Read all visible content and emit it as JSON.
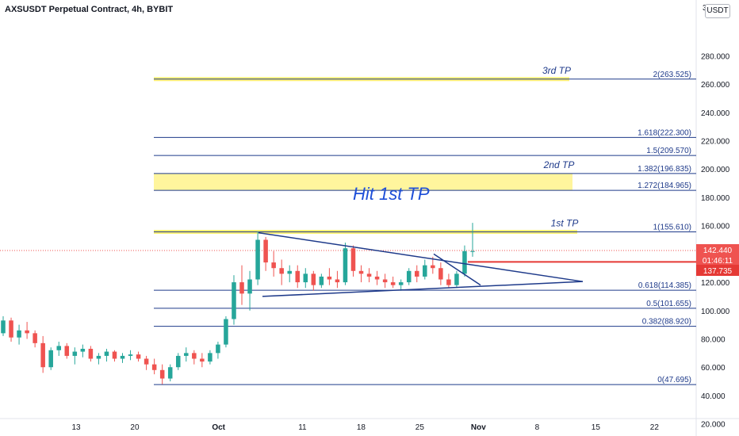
{
  "header": {
    "title": "AXSUSDT Perpetual Contract, 4h, BYBIT",
    "currency_badge": "USDT",
    "top_tick": "3"
  },
  "chart_data": {
    "type": "candlestick",
    "ylim": [
      10,
      300
    ],
    "y_ticks": [
      {
        "value": 280,
        "label": "280.000"
      },
      {
        "value": 260,
        "label": "260.000"
      },
      {
        "value": 240,
        "label": "240.000"
      },
      {
        "value": 220,
        "label": "220.000"
      },
      {
        "value": 200,
        "label": "200.000"
      },
      {
        "value": 180,
        "label": "180.000"
      },
      {
        "value": 160,
        "label": "160.000"
      },
      {
        "value": 120,
        "label": "120.000"
      },
      {
        "value": 100,
        "label": "100.000"
      },
      {
        "value": 80,
        "label": "80.000"
      },
      {
        "value": 60,
        "label": "60.000"
      },
      {
        "value": 40,
        "label": "40.000"
      },
      {
        "value": 20,
        "label": "20.000"
      }
    ],
    "x_ticks": [
      {
        "day": 13,
        "label": "13"
      },
      {
        "day": 20,
        "label": "20"
      },
      {
        "day": 30,
        "label": "Oct"
      },
      {
        "day": 40,
        "label": "11"
      },
      {
        "day": 47,
        "label": "18"
      },
      {
        "day": 54,
        "label": "25"
      },
      {
        "day": 61,
        "label": "Nov"
      },
      {
        "day": 68,
        "label": "8"
      },
      {
        "day": 75,
        "label": "15"
      },
      {
        "day": 82,
        "label": "22"
      }
    ],
    "fib_levels": [
      {
        "label": "2(263.525)",
        "value": 263.525
      },
      {
        "label": "1.618(222.300)",
        "value": 222.3
      },
      {
        "label": "1.5(209.570)",
        "value": 209.57
      },
      {
        "label": "1.382(196.835)",
        "value": 196.835
      },
      {
        "label": "1.272(184.965)",
        "value": 184.965
      },
      {
        "label": "1(155.610)",
        "value": 155.61
      },
      {
        "label": "0.618(114.385)",
        "value": 114.385
      },
      {
        "label": "0.5(101.655)",
        "value": 101.655
      },
      {
        "label": "0.382(88.920)",
        "value": 88.92
      },
      {
        "label": "0(47.695)",
        "value": 47.695
      }
    ],
    "tp_labels": [
      {
        "label": "3rd TP",
        "value": 263.525
      },
      {
        "label": "2nd TP",
        "value": 196.835
      },
      {
        "label": "1st TP",
        "value": 155.61
      }
    ],
    "annotation": "Hit 1st TP",
    "price_tags": {
      "current_price": {
        "value": 142.44,
        "label": "142.440"
      },
      "countdown": "01:46:11",
      "level_price": {
        "value": 137.735,
        "label": "137.735"
      }
    },
    "ohlc": [
      [
        84,
        96,
        82,
        93
      ],
      [
        93,
        95,
        78,
        81
      ],
      [
        81,
        90,
        76,
        86
      ],
      [
        86,
        92,
        80,
        84
      ],
      [
        84,
        86,
        74,
        77
      ],
      [
        77,
        82,
        56,
        60
      ],
      [
        60,
        74,
        58,
        72
      ],
      [
        72,
        78,
        68,
        75
      ],
      [
        75,
        77,
        66,
        68
      ],
      [
        68,
        74,
        62,
        71
      ],
      [
        71,
        76,
        67,
        73
      ],
      [
        73,
        75,
        64,
        66
      ],
      [
        66,
        70,
        62,
        68
      ],
      [
        68,
        73,
        64,
        71
      ],
      [
        71,
        72,
        64,
        66
      ],
      [
        66,
        70,
        63,
        68
      ],
      [
        68,
        72,
        65,
        69
      ],
      [
        69,
        71,
        64,
        66
      ],
      [
        66,
        68,
        58,
        62
      ],
      [
        62,
        66,
        55,
        58
      ],
      [
        58,
        62,
        48,
        52
      ],
      [
        52,
        62,
        50,
        60
      ],
      [
        60,
        70,
        58,
        68
      ],
      [
        68,
        74,
        64,
        70
      ],
      [
        70,
        72,
        62,
        66
      ],
      [
        66,
        70,
        60,
        64
      ],
      [
        64,
        72,
        62,
        70
      ],
      [
        70,
        78,
        66,
        76
      ],
      [
        76,
        96,
        74,
        94
      ],
      [
        94,
        125,
        90,
        120
      ],
      [
        120,
        132,
        104,
        112
      ],
      [
        112,
        128,
        100,
        122
      ],
      [
        122,
        156,
        118,
        150
      ],
      [
        150,
        152,
        128,
        134
      ],
      [
        134,
        142,
        124,
        130
      ],
      [
        130,
        136,
        118,
        126
      ],
      [
        126,
        132,
        120,
        128
      ],
      [
        128,
        132,
        116,
        120
      ],
      [
        120,
        130,
        116,
        126
      ],
      [
        126,
        128,
        114,
        118
      ],
      [
        118,
        126,
        116,
        124
      ],
      [
        124,
        130,
        118,
        122
      ],
      [
        122,
        128,
        116,
        120
      ],
      [
        120,
        148,
        118,
        144
      ],
      [
        144,
        146,
        124,
        128
      ],
      [
        128,
        132,
        120,
        126
      ],
      [
        126,
        130,
        120,
        124
      ],
      [
        124,
        128,
        118,
        122
      ],
      [
        122,
        126,
        116,
        120
      ],
      [
        120,
        124,
        116,
        118
      ],
      [
        118,
        122,
        114,
        120
      ],
      [
        120,
        130,
        118,
        128
      ],
      [
        128,
        132,
        120,
        124
      ],
      [
        124,
        136,
        122,
        132
      ],
      [
        132,
        138,
        126,
        130
      ],
      [
        130,
        134,
        118,
        122
      ],
      [
        122,
        126,
        116,
        118
      ],
      [
        118,
        128,
        116,
        126
      ],
      [
        126,
        146,
        124,
        142
      ],
      [
        142,
        162,
        138,
        142
      ]
    ]
  }
}
